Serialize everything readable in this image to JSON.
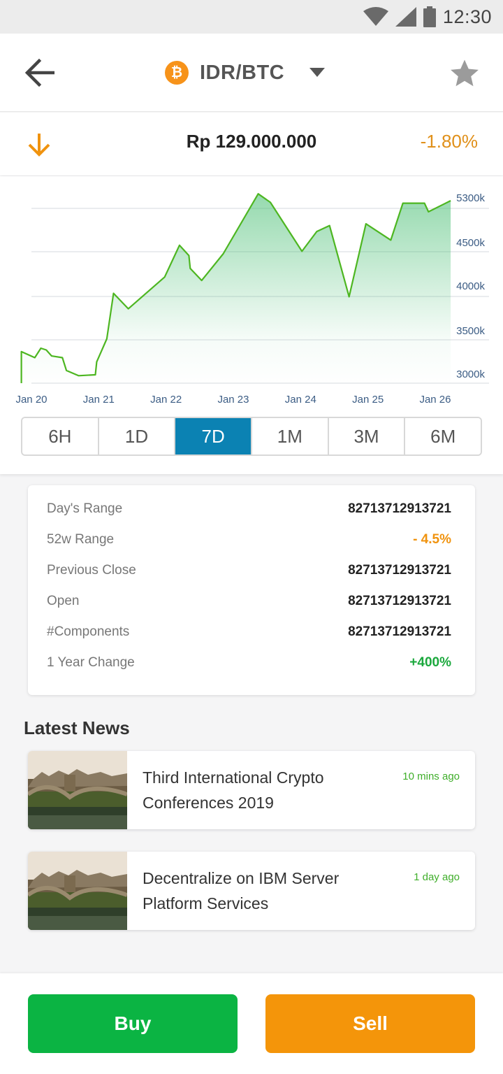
{
  "status_bar": {
    "time": "12:30",
    "icons": [
      "wifi-icon",
      "signal-icon",
      "battery-icon"
    ]
  },
  "header": {
    "back_icon": "arrow-left-icon",
    "coin_symbol": "₿",
    "pair": "IDR/BTC",
    "dropdown_icon": "caret-down-icon",
    "favorite_icon": "star-icon"
  },
  "price": {
    "direction_icon": "arrow-down-icon",
    "value": "Rp 129.000.000",
    "change": "-1.80%"
  },
  "chart_data": {
    "type": "area",
    "x": [
      "Jan 20",
      "Jan 21",
      "Jan 22",
      "Jan 23",
      "Jan 24",
      "Jan 25",
      "Jan 26"
    ],
    "y_ticks": [
      "5300k",
      "4500k",
      "4000k",
      "3500k",
      "3000k"
    ],
    "series": [
      {
        "points": [
          [
            19.85,
            3400
          ],
          [
            20.05,
            3330
          ],
          [
            20.14,
            3440
          ],
          [
            20.22,
            3420
          ],
          [
            20.3,
            3350
          ],
          [
            20.46,
            3330
          ],
          [
            20.52,
            3180
          ],
          [
            20.7,
            3120
          ],
          [
            20.95,
            3130
          ],
          [
            20.97,
            3280
          ],
          [
            21.12,
            3550
          ],
          [
            21.22,
            4080
          ],
          [
            21.44,
            3900
          ],
          [
            21.98,
            4270
          ],
          [
            22.2,
            4640
          ],
          [
            22.34,
            4520
          ],
          [
            22.36,
            4370
          ],
          [
            22.53,
            4230
          ],
          [
            22.85,
            4540
          ],
          [
            23.37,
            5240
          ],
          [
            23.55,
            5140
          ],
          [
            24.02,
            4570
          ],
          [
            24.24,
            4800
          ],
          [
            24.43,
            4870
          ],
          [
            24.72,
            4040
          ],
          [
            24.97,
            4890
          ],
          [
            25.34,
            4700
          ],
          [
            25.52,
            5130
          ],
          [
            25.84,
            5130
          ],
          [
            25.9,
            5030
          ],
          [
            26.23,
            5160
          ]
        ]
      }
    ],
    "ylim": [
      2920,
      5300
    ],
    "grid": true,
    "colors": {
      "line": "#4db621",
      "fill": "#3fbb6c"
    }
  },
  "range_tabs": {
    "items": [
      "6H",
      "1D",
      "7D",
      "1M",
      "3M",
      "6M"
    ],
    "active": "7D"
  },
  "stats": [
    {
      "label": "Day's Range",
      "value": "82713712913721",
      "tone": "default"
    },
    {
      "label": "52w Range",
      "value": "- 4.5%",
      "tone": "orange"
    },
    {
      "label": "Previous Close",
      "value": "82713712913721",
      "tone": "default"
    },
    {
      "label": "Open",
      "value": "82713712913721",
      "tone": "default"
    },
    {
      "label": "#Components",
      "value": "82713712913721",
      "tone": "default"
    },
    {
      "label": "1 Year Change",
      "value": "+400%",
      "tone": "green"
    }
  ],
  "news": {
    "heading": "Latest News",
    "items": [
      {
        "title": "Third International Crypto Conferences 2019",
        "time": "10 mins ago",
        "image": "castle-bridge-photo"
      },
      {
        "title": "Decentralize on IBM Server Platform Services",
        "time": "1 day ago",
        "image": "castle-bridge-photo"
      }
    ]
  },
  "actions": {
    "buy_label": "Buy",
    "sell_label": "Sell"
  },
  "colors": {
    "accent_blue": "#0b82b3",
    "buy_green": "#0bb443",
    "sell_orange": "#f4950a",
    "negative": "#e0901a",
    "positive": "#1ba83d"
  }
}
